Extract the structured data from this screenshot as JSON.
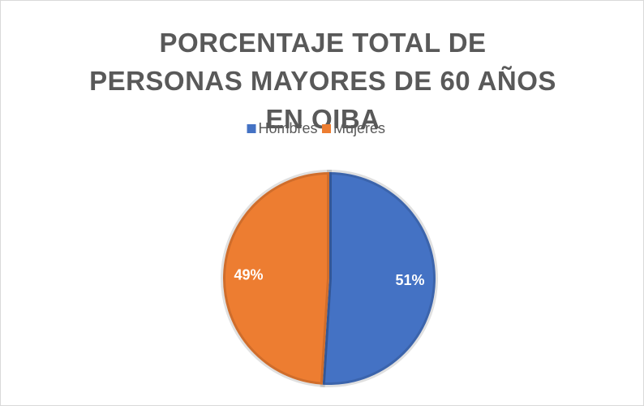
{
  "chart_data": {
    "type": "pie",
    "title": "PORCENTAJE TOTAL DE PERSONAS MAYORES DE 60 AÑOS EN OIBA",
    "categories": [
      "Hombres",
      "Mujeres"
    ],
    "values": [
      51,
      49
    ],
    "value_labels": [
      "51%",
      "49%"
    ],
    "colors": [
      "#4472c4",
      "#ed7d31"
    ],
    "legend": "top"
  }
}
